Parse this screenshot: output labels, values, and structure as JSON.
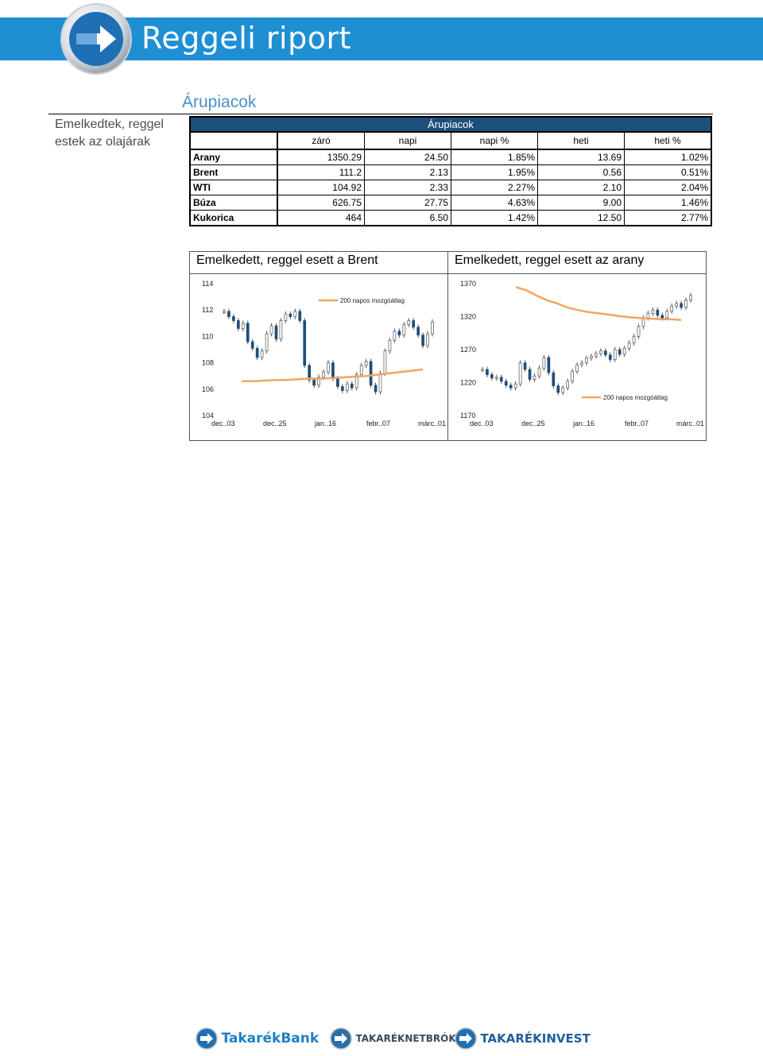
{
  "header": {
    "title": "Reggeli riport"
  },
  "section": {
    "title": "Árupiacok"
  },
  "sidebar": {
    "headline": "Emelkedtek, reggel estek az olajárak"
  },
  "table": {
    "caption": "Árupiacok",
    "columns": [
      "záró",
      "napi",
      "napi %",
      "heti",
      "heti %"
    ],
    "rows": [
      {
        "label": "Arany",
        "values": [
          "1350.29",
          "24.50",
          "1.85%",
          "13.69",
          "1.02%"
        ]
      },
      {
        "label": "Brent",
        "values": [
          "111.2",
          "2.13",
          "1.95%",
          "0.56",
          "0.51%"
        ]
      },
      {
        "label": "WTI",
        "values": [
          "104.92",
          "2.33",
          "2.27%",
          "2.10",
          "2.04%"
        ]
      },
      {
        "label": "Búza",
        "values": [
          "626.75",
          "27.75",
          "4.63%",
          "9.00",
          "1.46%"
        ]
      },
      {
        "label": "Kukorica",
        "values": [
          "464",
          "6.50",
          "1.42%",
          "12.50",
          "2.77%"
        ]
      }
    ]
  },
  "colors": {
    "header": "#1f8fd4",
    "table_caption": "#1e4f7a",
    "candle": "#1f4e79",
    "ma": "#f4a460"
  },
  "chart_data": [
    {
      "type": "candlestick",
      "title": "Emelkedett, reggel esett a Brent",
      "y_ticks": [
        "114",
        "112",
        "110",
        "108",
        "106",
        "104"
      ],
      "ylim": [
        104,
        114
      ],
      "x_ticks": [
        "dec..03",
        "dec..25",
        "jan..16",
        "febr..07",
        "márc..01"
      ],
      "legend": "200 napos mozgóátlag",
      "legend_position": "top-right",
      "series": [
        {
          "name": "200 napos mozgóátlag",
          "kind": "line",
          "values": [
            106.6,
            106.6,
            106.65,
            106.7,
            106.7,
            106.75,
            106.8,
            106.8,
            106.85,
            106.9,
            106.95,
            107.0,
            107.1,
            107.2,
            107.3,
            107.4,
            107.5
          ]
        },
        {
          "name": "Brent",
          "kind": "candles",
          "values": [
            111.9,
            111.5,
            111.2,
            110.6,
            111.0,
            109.6,
            109.1,
            108.4,
            108.9,
            110.2,
            110.8,
            109.8,
            111.2,
            111.7,
            111.5,
            111.9,
            111.2,
            107.8,
            106.7,
            106.3,
            106.9,
            107.3,
            108.0,
            106.8,
            106.2,
            105.9,
            106.4,
            106.1,
            107.1,
            107.8,
            108.1,
            106.3,
            105.8,
            107.2,
            108.9,
            109.7,
            110.4,
            110.1,
            110.9,
            111.2,
            110.7,
            110.1,
            109.3,
            110.2,
            111.1
          ]
        }
      ]
    },
    {
      "type": "candlestick",
      "title": "Emelkedett, reggel esett az arany",
      "y_ticks": [
        "1370",
        "1320",
        "1270",
        "1220",
        "1170"
      ],
      "ylim": [
        1170,
        1370
      ],
      "x_ticks": [
        "dec..03",
        "dec..25",
        "jan..16",
        "febr..07",
        "márc..01"
      ],
      "legend": "200 napos mozgóátlag",
      "legend_position": "bottom-right",
      "series": [
        {
          "name": "200 napos mozgóátlag",
          "kind": "line",
          "values": [
            1365,
            1360,
            1352,
            1345,
            1340,
            1334,
            1330,
            1327,
            1325,
            1323,
            1321,
            1319,
            1318,
            1317,
            1316,
            1316,
            1315
          ]
        },
        {
          "name": "Arany",
          "kind": "candles",
          "values": [
            1240,
            1232,
            1227,
            1228,
            1222,
            1216,
            1212,
            1218,
            1250,
            1240,
            1225,
            1230,
            1242,
            1258,
            1235,
            1215,
            1205,
            1212,
            1222,
            1237,
            1247,
            1250,
            1257,
            1260,
            1264,
            1268,
            1262,
            1255,
            1270,
            1263,
            1272,
            1280,
            1290,
            1305,
            1318,
            1325,
            1330,
            1322,
            1318,
            1328,
            1336,
            1340,
            1334,
            1345,
            1352
          ]
        }
      ]
    }
  ],
  "footer": {
    "logos": [
      "TakarékBank",
      "TAKARÉKNETBRÓKER",
      "TAKARÉKINVEST"
    ]
  }
}
